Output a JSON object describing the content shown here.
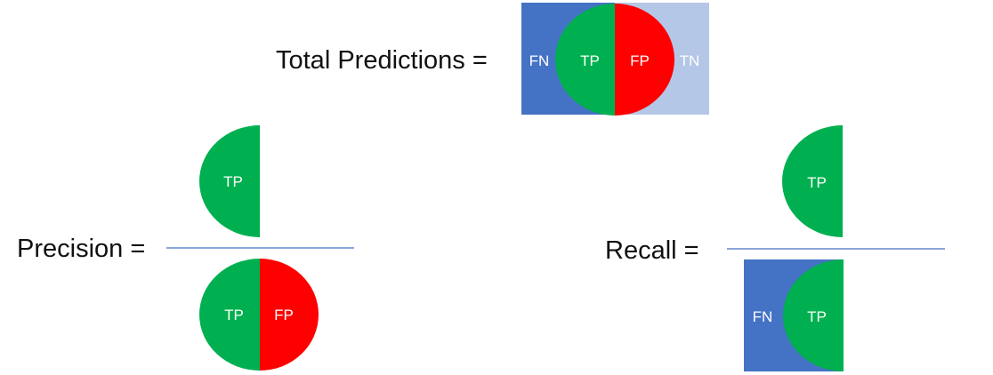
{
  "equations": {
    "total_label": "Total Predictions =",
    "precision_label": "Precision =",
    "recall_label": "Recall ="
  },
  "segments": {
    "tp": "TP",
    "fp": "FP",
    "fn": "FN",
    "tn": "TN"
  },
  "colors": {
    "tp": "#00b050",
    "fp": "#ff0000",
    "fn": "#4472c4",
    "tn": "#b4c7e7",
    "fraction_line": "#4472c4",
    "segment_text": "#ffffff"
  }
}
